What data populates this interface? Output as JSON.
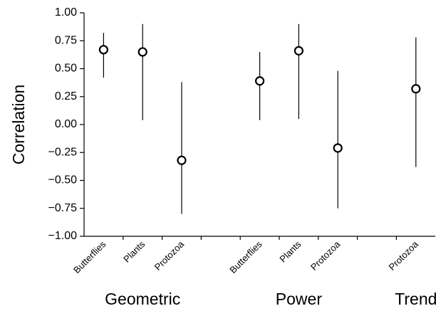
{
  "chart_data": {
    "type": "errorpoint",
    "y_label": "Correlation",
    "categories": [
      "Butterflies",
      "Plants",
      "Protozoa",
      null,
      "Butterflies",
      "Plants",
      "Protozoa",
      null,
      "Protozoa"
    ],
    "groups": [
      {
        "label": "Geometric",
        "categories": [
          0,
          1,
          2
        ]
      },
      {
        "label": "Power",
        "categories": [
          4,
          5,
          6
        ]
      },
      {
        "label": "Trend",
        "categories": [
          8
        ]
      }
    ],
    "series": [
      {
        "color": "#000000",
        "values": [
          0.67,
          0.65,
          -0.32,
          null,
          0.39,
          0.66,
          -0.21,
          null,
          0.32
        ],
        "low": [
          0.42,
          0.04,
          -0.8,
          null,
          0.04,
          0.05,
          -0.75,
          null,
          -0.38
        ],
        "high": [
          0.82,
          0.9,
          0.38,
          null,
          0.65,
          0.9,
          0.48,
          null,
          0.78
        ]
      }
    ],
    "ylim": [
      -1,
      1
    ],
    "yticks": [
      {
        "value": -1,
        "label": "−1.00"
      },
      {
        "value": -0.75,
        "label": "−0.75"
      },
      {
        "value": -0.5,
        "label": "−0.50"
      },
      {
        "value": -0.25,
        "label": "−0.25"
      },
      {
        "value": 0,
        "label": "0.00"
      },
      {
        "value": 0.25,
        "label": "0.25"
      },
      {
        "value": 0.5,
        "label": "0.50"
      },
      {
        "value": 0.75,
        "label": "0.75"
      },
      {
        "value": 1,
        "label": "1.00"
      }
    ]
  }
}
